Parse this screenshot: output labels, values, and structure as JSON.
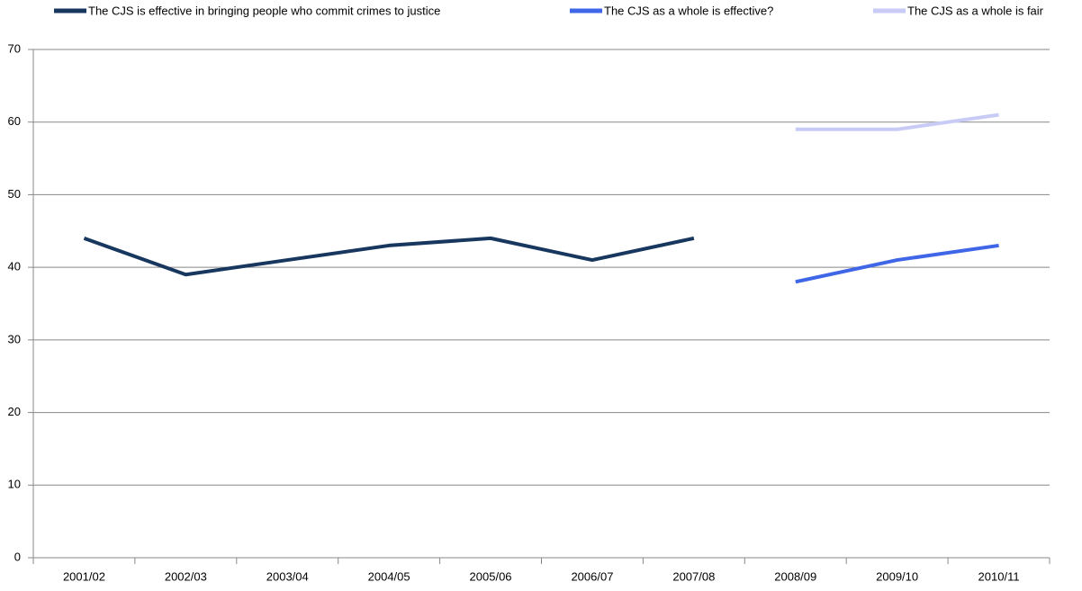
{
  "chart_data": {
    "type": "line",
    "categories": [
      "2001/02",
      "2002/03",
      "2003/04",
      "2004/05",
      "2005/06",
      "2006/07",
      "2007/08",
      "2008/09",
      "2009/10",
      "2010/11"
    ],
    "series": [
      {
        "name": "The CJS is effective in bringing people who commit crimes to justice",
        "color": "#17375e",
        "values": [
          44,
          39,
          41,
          43,
          44,
          41,
          44,
          null,
          null,
          null
        ]
      },
      {
        "name": "The CJS as a whole is effective?",
        "color": "#3f66e6",
        "values": [
          null,
          null,
          null,
          null,
          null,
          null,
          null,
          38,
          41,
          43
        ]
      },
      {
        "name": "The CJS as a whole is fair",
        "color": "#c9cbf7",
        "values": [
          null,
          null,
          null,
          null,
          null,
          null,
          null,
          59,
          59,
          61
        ]
      }
    ],
    "ylim": [
      0,
      70
    ],
    "yticks": [
      0,
      10,
      20,
      30,
      40,
      50,
      60,
      70
    ],
    "grid": true,
    "legend": "top"
  }
}
